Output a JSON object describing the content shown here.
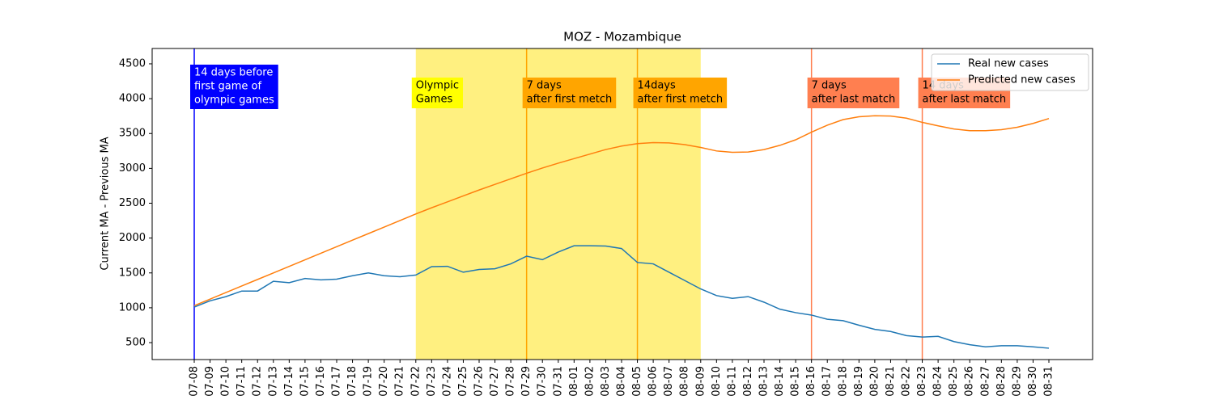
{
  "chart_data": {
    "type": "line",
    "title": "MOZ - Mozambique",
    "ylabel": "Current MA - Previous MA",
    "categories": [
      "07-08",
      "07-09",
      "07-10",
      "07-11",
      "07-12",
      "07-13",
      "07-14",
      "07-15",
      "07-16",
      "07-17",
      "07-18",
      "07-19",
      "07-20",
      "07-21",
      "07-22",
      "07-23",
      "07-24",
      "07-25",
      "07-26",
      "07-27",
      "07-28",
      "07-29",
      "07-30",
      "07-31",
      "08-01",
      "08-02",
      "08-03",
      "08-04",
      "08-05",
      "08-06",
      "08-07",
      "08-08",
      "08-09",
      "08-10",
      "08-11",
      "08-12",
      "08-13",
      "08-14",
      "08-15",
      "08-16",
      "08-17",
      "08-18",
      "08-19",
      "08-20",
      "08-21",
      "08-22",
      "08-23",
      "08-24",
      "08-25",
      "08-26",
      "08-27",
      "08-28",
      "08-29",
      "08-30",
      "08-31"
    ],
    "series": [
      {
        "name": "Real new cases",
        "color": "#1f77b4",
        "values": [
          1010,
          1100,
          1160,
          1240,
          1240,
          1380,
          1360,
          1420,
          1400,
          1410,
          1460,
          1500,
          1460,
          1445,
          1470,
          1590,
          1595,
          1510,
          1550,
          1560,
          1630,
          1740,
          1690,
          1800,
          1890,
          1890,
          1885,
          1850,
          1650,
          1630,
          1510,
          1390,
          1270,
          1175,
          1135,
          1160,
          1080,
          980,
          930,
          895,
          835,
          815,
          750,
          690,
          660,
          600,
          580,
          590,
          515,
          470,
          440,
          455,
          455,
          440,
          420
        ]
      },
      {
        "name": "Predicted new cases",
        "color": "#ff7f0e",
        "values": [
          1030,
          1124,
          1218,
          1312,
          1406,
          1500,
          1594,
          1688,
          1782,
          1876,
          1970,
          2064,
          2158,
          2252,
          2346,
          2435,
          2520,
          2605,
          2690,
          2770,
          2850,
          2930,
          3005,
          3075,
          3140,
          3205,
          3270,
          3320,
          3355,
          3370,
          3365,
          3340,
          3300,
          3250,
          3230,
          3235,
          3270,
          3330,
          3410,
          3520,
          3620,
          3700,
          3740,
          3755,
          3750,
          3720,
          3660,
          3610,
          3565,
          3540,
          3540,
          3555,
          3590,
          3645,
          3715
        ]
      }
    ],
    "ylim": [
      257,
      4720
    ],
    "yticks": [
      500,
      1000,
      1500,
      2000,
      2500,
      3000,
      3500,
      4000,
      4500
    ],
    "legend": "upper right",
    "span": {
      "from": "07-22",
      "to": "08-09",
      "color": "#fff080",
      "label": [
        "Olympic",
        "Games"
      ],
      "label_color": "#ffff00"
    },
    "annotations": [
      {
        "x": "07-08",
        "color": "#0000ff",
        "text_color": "#ffffff",
        "text": [
          "14 days before",
          "first game of",
          "olympic games"
        ]
      },
      {
        "x": "07-29",
        "color": "#ffa500",
        "text_color": "#000000",
        "text": [
          "7 days",
          "after first metch"
        ]
      },
      {
        "x": "08-05",
        "color": "#ffa500",
        "text_color": "#000000",
        "text": [
          "14days",
          "after first metch"
        ]
      },
      {
        "x": "08-16",
        "color": "#ff7f50",
        "text_color": "#000000",
        "text": [
          "7 days",
          "after last match"
        ]
      },
      {
        "x": "08-23",
        "color": "#ff7f50",
        "text_color": "#000000",
        "text": [
          "14 days",
          "after last match"
        ]
      }
    ]
  }
}
